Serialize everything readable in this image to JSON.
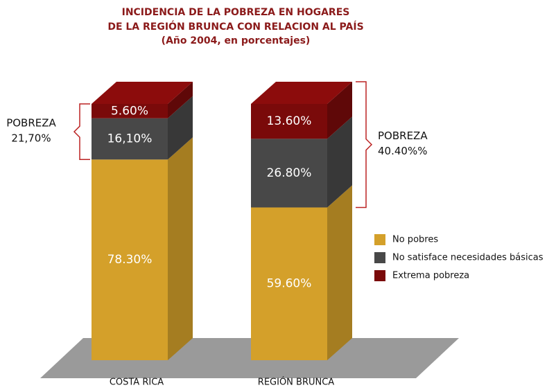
{
  "chart_data": {
    "type": "bar",
    "stacked": true,
    "title": [
      "INCIDENCIA DE LA POBREZA EN HOGARES",
      "DE LA REGIÓN BRUNCA CON RELACION AL PAÍS",
      "(Año 2004, en porcentajes)"
    ],
    "categories": [
      "COSTA RICA",
      "REGIÓN BRUNCA"
    ],
    "series": [
      {
        "name": "No pobres",
        "color": "#d4a02a",
        "values": [
          78.3,
          59.6
        ],
        "value_labels": [
          "78.30%",
          "59.60%"
        ]
      },
      {
        "name": "No satisface necesidades básicas",
        "color": "#484848",
        "values": [
          16.1,
          26.8
        ],
        "value_labels": [
          "16,10%",
          "26.80%"
        ]
      },
      {
        "name": "Extrema pobreza",
        "color": "#7a0a0a",
        "values": [
          5.6,
          13.6
        ],
        "value_labels": [
          "5.60%",
          "13.60%"
        ]
      }
    ],
    "annotations": [
      {
        "text": "POBREZA",
        "value": 21.7,
        "label": "21,70%"
      },
      {
        "text": "POBREZA",
        "value": 40.4,
        "label": "40.40%%"
      }
    ]
  }
}
